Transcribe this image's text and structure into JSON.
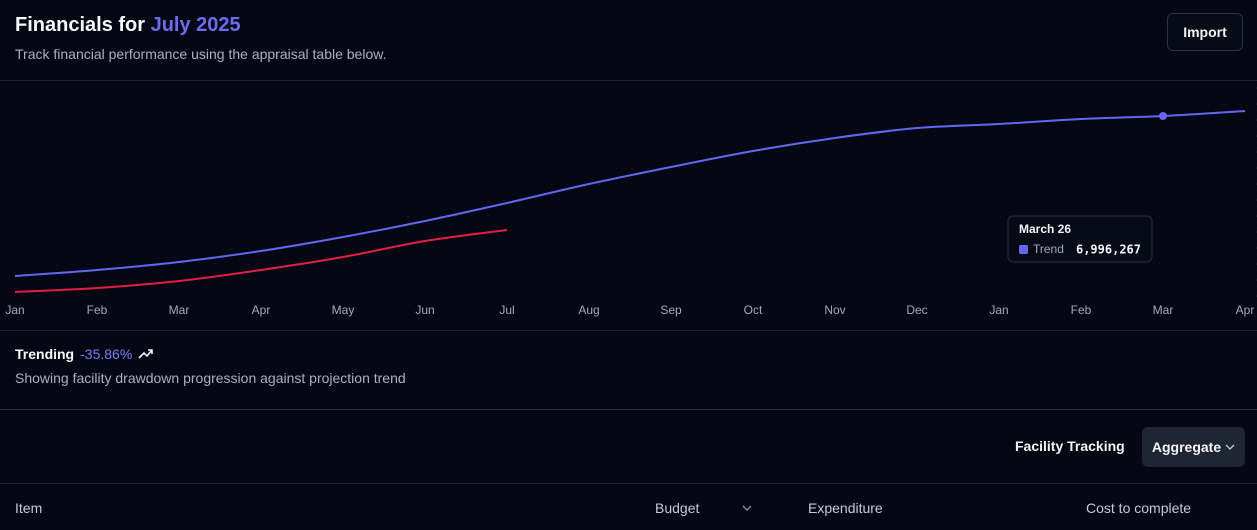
{
  "header": {
    "title": "Financials for",
    "title_highlight": "July 2025",
    "subtitle": "Track financial performance using the appraisal table below.",
    "button": "Import"
  },
  "chart_data": {
    "type": "line",
    "categories": [
      "Jan",
      "Feb",
      "Mar",
      "Apr",
      "May",
      "Jun",
      "Jul",
      "Aug",
      "Sep",
      "Oct",
      "Nov",
      "Dec",
      "Jan",
      "Feb",
      "Mar",
      "Apr"
    ],
    "series": [
      {
        "name": "Trend",
        "color": "#6366f1",
        "values": [
          845702,
          1076348,
          1383876,
          1806727,
          2344901,
          2959957,
          3651895,
          4382274,
          5035771,
          5650827,
          6150560,
          6534970,
          6688734,
          6880939,
          6996267,
          7188467
        ],
        "value_labels": [
          null,
          null,
          null,
          null,
          null,
          null,
          null,
          null,
          null,
          null,
          null,
          null,
          null,
          null,
          "6,996,267",
          null
        ]
      },
      {
        "color": "#e11d48",
        "values": [
          230646,
          384410,
          653497,
          1076348,
          1576081,
          2191137,
          2613988,
          null,
          null,
          null,
          null,
          null,
          null,
          null,
          null,
          null
        ]
      }
    ],
    "tooltip_title": "March 26",
    "grid": true
  },
  "summary": {
    "label": "Trending",
    "change": "-35.86%",
    "description": "Showing facility drawdown progression against projection trend"
  },
  "toolbar": {
    "label": "Facility Tracking",
    "select": "Aggregate"
  },
  "table": {
    "headers": [
      "Item",
      "Budget",
      "Expenditure",
      "Cost to complete"
    ]
  }
}
